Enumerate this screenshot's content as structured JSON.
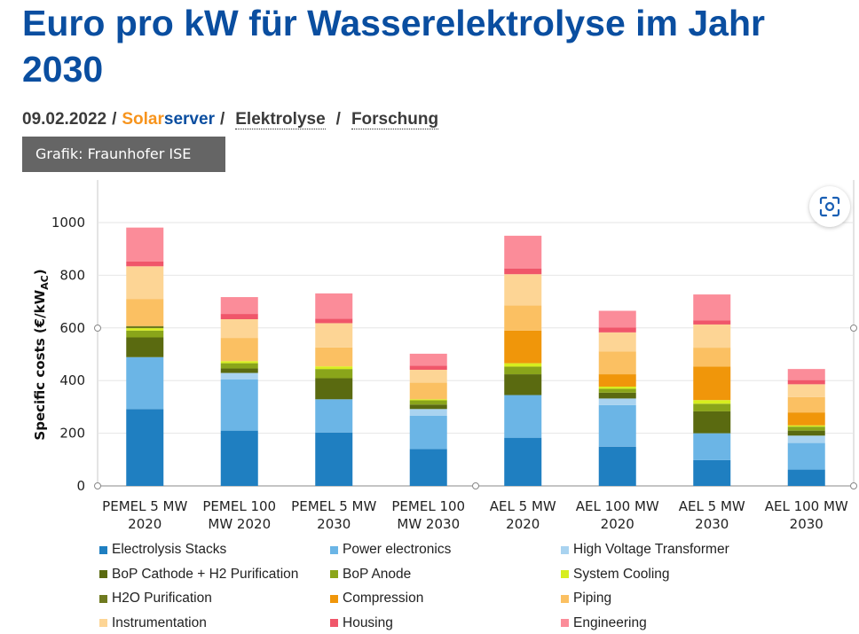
{
  "article": {
    "title": "Euro pro kW für Wasserelektrolyse im Jahr 2030",
    "date": "09.02.2022",
    "source_part1": "Solar",
    "source_part2": "server",
    "tags": [
      "Elektrolyse",
      "Forschung"
    ],
    "caption": "Grafik: Fraunhofer ISE",
    "scan_icon": "scan-image-icon"
  },
  "chart_data": {
    "type": "bar",
    "stacked": true,
    "ylabel": "Specific costs (€/kW",
    "ylabel_sub": "AC",
    "ylabel_close": ")",
    "ylim": [
      0,
      1000
    ],
    "yticks": [
      0,
      200,
      400,
      600,
      800,
      1000
    ],
    "grid": true,
    "legend_position": "bottom",
    "categories": [
      [
        "PEMEL 5 MW",
        "2020"
      ],
      [
        "PEMEL 100",
        "MW 2020"
      ],
      [
        "PEMEL 5 MW",
        "2030"
      ],
      [
        "PEMEL 100",
        "MW 2030"
      ],
      [
        "AEL 5 MW",
        "2020"
      ],
      [
        "AEL 100 MW",
        "2020"
      ],
      [
        "AEL 5 MW",
        "2030"
      ],
      [
        "AEL 100 MW",
        "2030"
      ]
    ],
    "series": [
      {
        "name": "Electrolysis Stacks",
        "color": "#1f7fc1",
        "values": [
          292,
          210,
          203,
          140,
          183,
          149,
          98,
          62
        ]
      },
      {
        "name": "Power electronics",
        "color": "#6bb5e6",
        "values": [
          197,
          194,
          126,
          126,
          162,
          158,
          102,
          101
        ]
      },
      {
        "name": "High Voltage Transformer",
        "color": "#a9d3f0",
        "values": [
          0,
          25,
          0,
          26,
          0,
          25,
          0,
          28
        ]
      },
      {
        "name": "BoP Cathode + H2 Purification",
        "color": "#5a6a10",
        "values": [
          75,
          17,
          80,
          17,
          79,
          22,
          83,
          19
        ]
      },
      {
        "name": "BoP Anode",
        "color": "#8aa51a",
        "values": [
          26,
          20,
          35,
          16,
          29,
          15,
          29,
          15
        ]
      },
      {
        "name": "System Cooling",
        "color": "#d7ee1e",
        "values": [
          9,
          8,
          10,
          4,
          13,
          8,
          14,
          5
        ]
      },
      {
        "name": "H2O Purification",
        "color": "#6f7a20",
        "values": [
          8,
          0,
          0,
          0,
          0,
          0,
          0,
          0
        ]
      },
      {
        "name": "Compression",
        "color": "#f0960a",
        "values": [
          0,
          0,
          0,
          0,
          124,
          47,
          127,
          49
        ]
      },
      {
        "name": "Piping",
        "color": "#fbc062",
        "values": [
          103,
          88,
          72,
          63,
          95,
          87,
          72,
          58
        ]
      },
      {
        "name": "Instrumentation",
        "color": "#fdd595",
        "values": [
          124,
          71,
          92,
          49,
          119,
          72,
          88,
          49
        ]
      },
      {
        "name": "Housing",
        "color": "#f0566a",
        "values": [
          18,
          20,
          17,
          16,
          22,
          18,
          16,
          16
        ]
      },
      {
        "name": "Engineering",
        "color": "#fb8c99",
        "values": [
          129,
          64,
          96,
          45,
          124,
          64,
          98,
          42
        ]
      }
    ]
  }
}
